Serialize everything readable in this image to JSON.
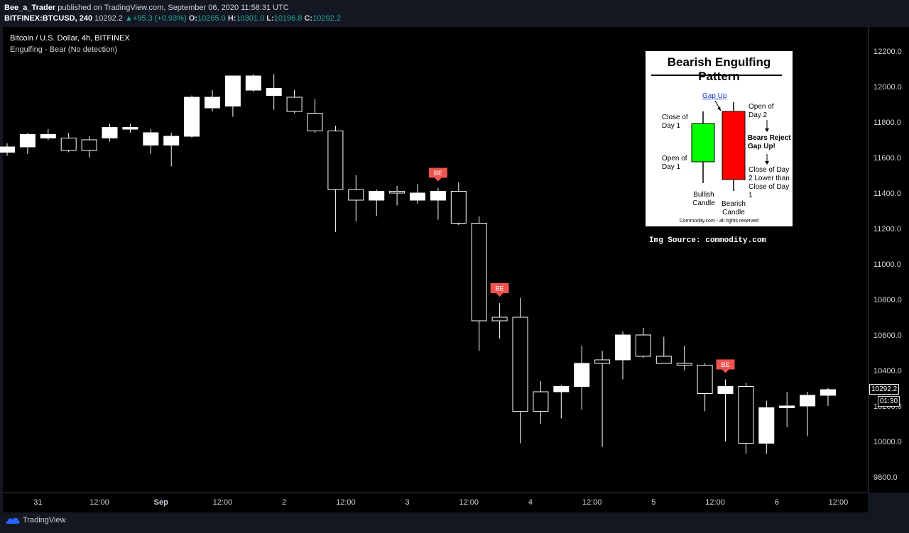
{
  "header": {
    "author": "Bee_a_Trader",
    "published_text": "published on TradingView.com, September 06, 2020 11:58:31 UTC",
    "symbol": "BITFINEX:BTCUSD, 240",
    "last": "10292.2",
    "change": "+95.3 (+0.93%)",
    "o_label": "O:",
    "o": "10265.0",
    "h_label": "H:",
    "h": "10301.0",
    "l_label": "L:",
    "l": "10196.8",
    "c_label": "C:",
    "c": "10292.2"
  },
  "legend": {
    "title": "Bitcoin / U.S. Dollar, 4h, BITFINEX",
    "indicator": "Engulfing - Bear (No detection)"
  },
  "inset": {
    "title": "Bearish Engulfing Pattern",
    "gap_up": "Gap Up",
    "close_day1": "Close of Day 1",
    "open_day1": "Open of Day 1",
    "open_day2": "Open of Day 2",
    "bears_reject": "Bears Reject Gap Up!",
    "close_day2": "Close of Day 2 Lower than Close of Day 1",
    "bullish": "Bullish Candle",
    "bearish": "Bearish Candle",
    "credit": "Commodity.com - all rights reserved"
  },
  "img_source": "Img Source: commodity.com",
  "price_tags": {
    "last": "10292.2",
    "countdown": "01:30",
    "hidden": "10200.0"
  },
  "footer": {
    "brand": "TradingView"
  },
  "colors": {
    "candle": "#ffffff",
    "be_marker": "#ef5350",
    "background": "#000000",
    "bullish_fill": "#00ff00",
    "bearish_fill": "#ff0000"
  },
  "chart_data": {
    "type": "candlestick",
    "title": "Bitcoin / U.S. Dollar, 4h, BITFINEX",
    "ylim": [
      9700,
      12300
    ],
    "y_ticks": [
      9800,
      10000,
      10200,
      10400,
      10600,
      10800,
      11000,
      11200,
      11400,
      11600,
      11800,
      12000,
      12200
    ],
    "y_tick_labels": [
      "9800.0",
      "10000.0",
      "10200.0",
      "10400.0",
      "10600.0",
      "10800.0",
      "11000.0",
      "11200.0",
      "11400.0",
      "11600.0",
      "11800.0",
      "12000.0",
      "12200.0"
    ],
    "x_tick_labels": [
      {
        "label": "31",
        "bar": 1.5
      },
      {
        "label": "12:00",
        "bar": 4.5
      },
      {
        "label": "Sep",
        "bar": 7.5
      },
      {
        "label": "12:00",
        "bar": 10.5
      },
      {
        "label": "2",
        "bar": 13.5
      },
      {
        "label": "12:00",
        "bar": 16.5
      },
      {
        "label": "3",
        "bar": 19.5
      },
      {
        "label": "12:00",
        "bar": 22.5
      },
      {
        "label": "4",
        "bar": 25.5
      },
      {
        "label": "12:00",
        "bar": 28.5
      },
      {
        "label": "5",
        "bar": 31.5
      },
      {
        "label": "12:00",
        "bar": 34.5
      },
      {
        "label": "6",
        "bar": 37.5
      },
      {
        "label": "12:00",
        "bar": 40.5
      }
    ],
    "grid": false,
    "marker_label": "BE",
    "be_markers": [
      21,
      24,
      35
    ],
    "candles": [
      {
        "o": 11630,
        "h": 11680,
        "l": 11610,
        "c": 11660
      },
      {
        "o": 11660,
        "h": 11740,
        "l": 11620,
        "c": 11730
      },
      {
        "o": 11710,
        "h": 11760,
        "l": 11700,
        "c": 11730
      },
      {
        "o": 11710,
        "h": 11740,
        "l": 11630,
        "c": 11640
      },
      {
        "o": 11700,
        "h": 11720,
        "l": 11600,
        "c": 11640
      },
      {
        "o": 11710,
        "h": 11790,
        "l": 11690,
        "c": 11770
      },
      {
        "o": 11760,
        "h": 11790,
        "l": 11740,
        "c": 11770
      },
      {
        "o": 11670,
        "h": 11760,
        "l": 11620,
        "c": 11740
      },
      {
        "o": 11670,
        "h": 11740,
        "l": 11550,
        "c": 11720
      },
      {
        "o": 11720,
        "h": 11950,
        "l": 11710,
        "c": 11940
      },
      {
        "o": 11880,
        "h": 11980,
        "l": 11860,
        "c": 11940
      },
      {
        "o": 11890,
        "h": 12060,
        "l": 11830,
        "c": 12060
      },
      {
        "o": 11980,
        "h": 12070,
        "l": 11970,
        "c": 12060
      },
      {
        "o": 11950,
        "h": 12070,
        "l": 11870,
        "c": 11990
      },
      {
        "o": 11940,
        "h": 11980,
        "l": 11850,
        "c": 11860
      },
      {
        "o": 11850,
        "h": 11930,
        "l": 11740,
        "c": 11750
      },
      {
        "o": 11750,
        "h": 11780,
        "l": 11180,
        "c": 11420
      },
      {
        "o": 11420,
        "h": 11500,
        "l": 11240,
        "c": 11360
      },
      {
        "o": 11360,
        "h": 11420,
        "l": 11270,
        "c": 11410
      },
      {
        "o": 11410,
        "h": 11440,
        "l": 11330,
        "c": 11400
      },
      {
        "o": 11360,
        "h": 11450,
        "l": 11340,
        "c": 11400
      },
      {
        "o": 11360,
        "h": 11430,
        "l": 11250,
        "c": 11410
      },
      {
        "o": 11410,
        "h": 11460,
        "l": 11220,
        "c": 11230
      },
      {
        "o": 11230,
        "h": 11270,
        "l": 10510,
        "c": 10680
      },
      {
        "o": 10700,
        "h": 10780,
        "l": 10580,
        "c": 10680
      },
      {
        "o": 10700,
        "h": 10810,
        "l": 9990,
        "c": 10170
      },
      {
        "o": 10280,
        "h": 10340,
        "l": 10100,
        "c": 10170
      },
      {
        "o": 10280,
        "h": 10320,
        "l": 10130,
        "c": 10310
      },
      {
        "o": 10310,
        "h": 10540,
        "l": 10180,
        "c": 10440
      },
      {
        "o": 10460,
        "h": 10510,
        "l": 9970,
        "c": 10440
      },
      {
        "o": 10460,
        "h": 10620,
        "l": 10350,
        "c": 10600
      },
      {
        "o": 10600,
        "h": 10640,
        "l": 10470,
        "c": 10480
      },
      {
        "o": 10480,
        "h": 10590,
        "l": 10440,
        "c": 10440
      },
      {
        "o": 10440,
        "h": 10540,
        "l": 10400,
        "c": 10430
      },
      {
        "o": 10430,
        "h": 10440,
        "l": 10170,
        "c": 10270
      },
      {
        "o": 10270,
        "h": 10350,
        "l": 10000,
        "c": 10310
      },
      {
        "o": 10310,
        "h": 10330,
        "l": 9930,
        "c": 9990
      },
      {
        "o": 9990,
        "h": 10230,
        "l": 9930,
        "c": 10190
      },
      {
        "o": 10190,
        "h": 10280,
        "l": 10080,
        "c": 10200
      },
      {
        "o": 10200,
        "h": 10280,
        "l": 10030,
        "c": 10260
      },
      {
        "o": 10260,
        "h": 10300,
        "l": 10200,
        "c": 10292
      }
    ]
  }
}
